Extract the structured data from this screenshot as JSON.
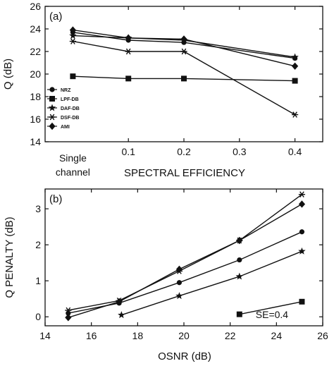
{
  "chart_data": [
    {
      "type": "line",
      "panel_label": "(a)",
      "xlabel": "SPECTRAL EFFICIENCY",
      "ylabel": "Q (dB)",
      "xlim": [
        -0.05,
        0.45
      ],
      "ylim": [
        14,
        26
      ],
      "x_ticks": [
        0.1,
        0.2,
        0.3,
        0.4
      ],
      "x_tick_labels": [
        "0.1",
        "0.2",
        "0.3",
        "0.4"
      ],
      "y_ticks": [
        14,
        16,
        18,
        20,
        22,
        24,
        26
      ],
      "y_tick_labels": [
        "14",
        "16",
        "18",
        "20",
        "22",
        "24",
        "26"
      ],
      "category_label": {
        "x": 0,
        "line1": "Single",
        "line2": "channel"
      },
      "legend_position": "lower-left",
      "series": [
        {
          "name": "NRZ",
          "marker": "circle",
          "x": [
            0,
            0.1,
            0.2,
            0.4
          ],
          "y": [
            23.7,
            23.0,
            22.8,
            21.4
          ]
        },
        {
          "name": "LPF-DB",
          "marker": "square",
          "x": [
            0,
            0.1,
            0.2,
            0.4
          ],
          "y": [
            19.8,
            19.6,
            19.6,
            19.4
          ]
        },
        {
          "name": "DAF-DB",
          "marker": "star",
          "x": [
            0,
            0.1,
            0.2,
            0.4
          ],
          "y": [
            23.4,
            23.2,
            23.0,
            21.5
          ]
        },
        {
          "name": "DSF-DB",
          "marker": "asterisk",
          "x": [
            0,
            0.1,
            0.2,
            0.4
          ],
          "y": [
            22.9,
            22.0,
            22.0,
            16.4
          ]
        },
        {
          "name": "AMI",
          "marker": "diamond",
          "x": [
            0,
            0.1,
            0.2,
            0.4
          ],
          "y": [
            23.9,
            23.2,
            23.1,
            20.7
          ]
        }
      ]
    },
    {
      "type": "line",
      "panel_label": "(b)",
      "xlabel": "OSNR (dB)",
      "ylabel": "Q PENALTY (dB)",
      "xlim": [
        14,
        26
      ],
      "ylim": [
        -0.25,
        3.55
      ],
      "x_ticks": [
        14,
        16,
        18,
        20,
        22,
        24,
        26
      ],
      "x_tick_labels": [
        "14",
        "16",
        "18",
        "20",
        "22",
        "24",
        "26"
      ],
      "y_ticks": [
        0,
        1,
        2,
        3
      ],
      "y_tick_labels": [
        "0",
        "1",
        "2",
        "3"
      ],
      "annotation": "SE=0.4",
      "series": [
        {
          "name": "NRZ",
          "marker": "circle",
          "x": [
            15.0,
            17.2,
            19.8,
            22.4,
            25.1
          ],
          "y": [
            0.1,
            0.38,
            0.95,
            1.58,
            2.36
          ]
        },
        {
          "name": "LPF-DB",
          "marker": "square",
          "x": [
            22.4,
            25.1
          ],
          "y": [
            0.07,
            0.42
          ]
        },
        {
          "name": "DAF-DB",
          "marker": "star",
          "x": [
            17.3,
            19.8,
            22.4,
            25.1
          ],
          "y": [
            0.05,
            0.58,
            1.12,
            1.82
          ]
        },
        {
          "name": "DSF-DB",
          "marker": "asterisk",
          "x": [
            15.0,
            17.2,
            19.8,
            22.4,
            25.1
          ],
          "y": [
            0.18,
            0.45,
            1.27,
            2.12,
            3.4
          ]
        },
        {
          "name": "AMI",
          "marker": "diamond",
          "x": [
            15.0,
            17.2,
            19.8,
            22.4,
            25.1
          ],
          "y": [
            -0.02,
            0.42,
            1.32,
            2.12,
            3.13
          ]
        }
      ]
    }
  ]
}
